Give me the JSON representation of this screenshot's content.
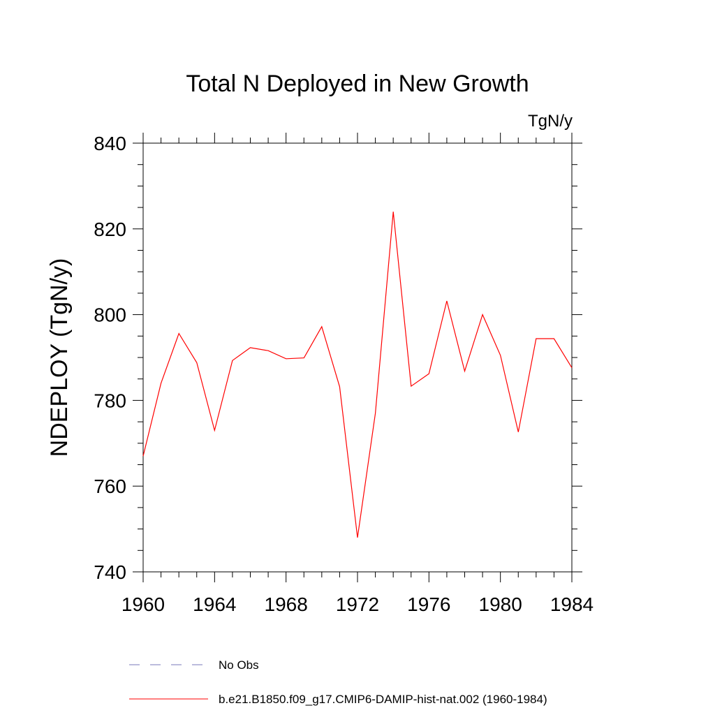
{
  "chart_data": {
    "type": "line",
    "title": "Total N Deployed in New Growth",
    "units": "TgN/y",
    "xlabel": "",
    "ylabel": "NDEPLOY  (TgN/y)",
    "xlim": [
      1960,
      1984
    ],
    "ylim": [
      740,
      840
    ],
    "x_ticks": [
      1960,
      1964,
      1968,
      1972,
      1976,
      1980,
      1984
    ],
    "y_ticks": [
      740,
      760,
      780,
      800,
      820,
      840
    ],
    "grid": false,
    "legend": "bottom",
    "legend_entries": [
      {
        "label": "No Obs",
        "color": "#7777bb",
        "dash": "dashed"
      },
      {
        "label": "b.e21.B1850.f09_g17.CMIP6-DAMIP-hist-nat.002 (1960-1984)",
        "color": "#ff0000",
        "dash": "solid"
      }
    ],
    "series": [
      {
        "name": "b.e21.B1850.f09_g17.CMIP6-DAMIP-hist-nat.002 (1960-1984)",
        "color": "#ff0000",
        "x": [
          1960,
          1961,
          1962,
          1963,
          1964,
          1965,
          1966,
          1967,
          1968,
          1969,
          1970,
          1971,
          1972,
          1973,
          1974,
          1975,
          1976,
          1977,
          1978,
          1979,
          1980,
          1981,
          1982,
          1983,
          1984
        ],
        "values": [
          767,
          784,
          795.6,
          788.8,
          773,
          789.3,
          792.3,
          791.6,
          789.7,
          789.9,
          797.2,
          783.2,
          748,
          777,
          824,
          783.3,
          786.2,
          803.2,
          786.8,
          800,
          790.5,
          772.6,
          794.4,
          794.4,
          787.6
        ]
      }
    ]
  }
}
